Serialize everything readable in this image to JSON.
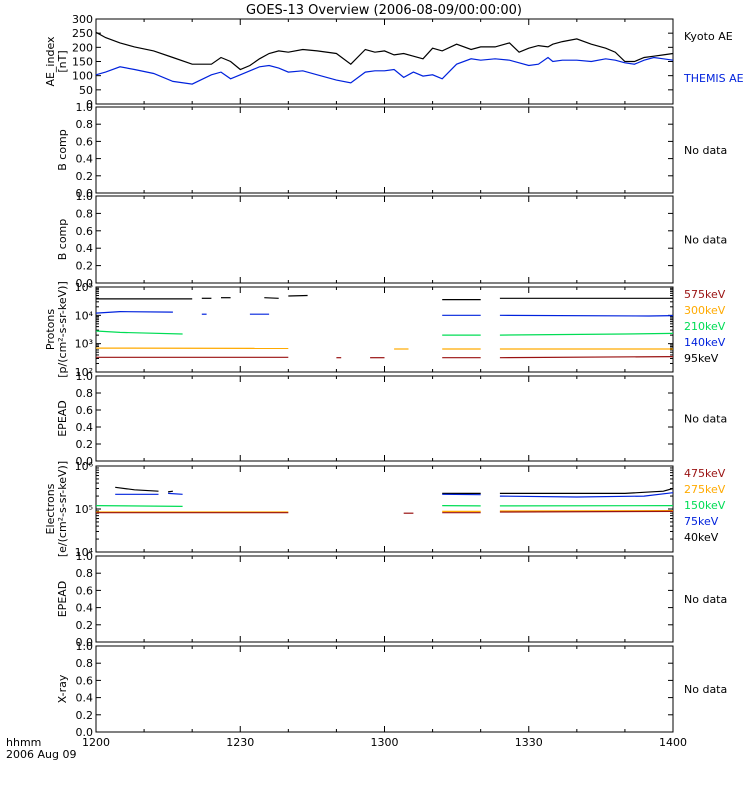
{
  "title": "GOES-13 Overview (2006-08-09/00:00:00)",
  "time_axis": {
    "label_line1": "hhmm",
    "label_line2": "2006 Aug 09",
    "ticks": [
      "1200",
      "1230",
      "1300",
      "1330",
      "1400"
    ],
    "range_minutes": [
      0,
      120
    ]
  },
  "no_data_label": "No data",
  "colors": {
    "black": "#000000",
    "blue": "#0022dd",
    "green": "#00dd55",
    "orange": "#ffaa00",
    "darkred": "#991111"
  },
  "chart_data": [
    {
      "type": "line",
      "panel": "ae-index",
      "ylabel": [
        "AE_index",
        "[nT]"
      ],
      "ylim": [
        0,
        320
      ],
      "yticks": [
        "0",
        "50",
        "100",
        "150",
        "200",
        "250",
        "300"
      ],
      "yscale": "linear",
      "legend": [
        {
          "name": "Kyoto AE",
          "color": "#000000"
        },
        {
          "name": "THEMIS AE",
          "color": "#0022dd"
        }
      ],
      "series": [
        {
          "name": "Kyoto AE",
          "color": "#000000",
          "x": [
            0,
            2,
            5,
            8,
            12,
            16,
            20,
            24,
            26,
            28,
            30,
            32,
            34,
            36,
            38,
            40,
            43,
            46,
            50,
            53,
            56,
            58,
            60,
            62,
            64,
            66,
            68,
            70,
            72,
            75,
            78,
            80,
            83,
            86,
            88,
            90,
            92,
            94,
            95,
            97,
            100,
            103,
            106,
            108,
            110,
            112,
            114,
            116,
            118,
            120
          ],
          "y": [
            270,
            250,
            230,
            215,
            200,
            175,
            150,
            150,
            175,
            160,
            130,
            145,
            170,
            190,
            200,
            195,
            205,
            200,
            190,
            150,
            205,
            195,
            200,
            185,
            190,
            180,
            170,
            210,
            200,
            225,
            205,
            215,
            215,
            230,
            195,
            210,
            220,
            215,
            225,
            235,
            245,
            225,
            210,
            195,
            160,
            160,
            175,
            180,
            185,
            190
          ]
        },
        {
          "name": "THEMIS AE",
          "color": "#0022dd",
          "x": [
            0,
            2,
            5,
            8,
            12,
            16,
            20,
            24,
            26,
            28,
            30,
            32,
            34,
            36,
            38,
            40,
            43,
            46,
            50,
            53,
            56,
            58,
            60,
            62,
            64,
            66,
            68,
            70,
            72,
            75,
            78,
            80,
            83,
            86,
            88,
            90,
            92,
            94,
            95,
            97,
            100,
            103,
            106,
            108,
            110,
            112,
            114,
            116,
            118,
            120
          ],
          "y": [
            110,
            120,
            140,
            130,
            115,
            85,
            75,
            110,
            120,
            95,
            110,
            125,
            140,
            145,
            135,
            120,
            125,
            110,
            90,
            80,
            120,
            125,
            125,
            130,
            100,
            120,
            105,
            110,
            95,
            150,
            170,
            165,
            170,
            165,
            155,
            145,
            150,
            175,
            160,
            165,
            165,
            160,
            170,
            165,
            155,
            150,
            165,
            175,
            170,
            165
          ]
        }
      ]
    },
    {
      "type": "line",
      "panel": "b-comp-1",
      "ylabel": [
        "B comp"
      ],
      "ylim": [
        0,
        1.0
      ],
      "yticks": [
        "0.0",
        "0.2",
        "0.4",
        "0.6",
        "0.8",
        "1.0"
      ],
      "series": [],
      "note": "No data"
    },
    {
      "type": "line",
      "panel": "b-comp-2",
      "ylabel": [
        "B comp"
      ],
      "ylim": [
        0,
        1.0
      ],
      "yticks": [
        "0.0",
        "0.2",
        "0.4",
        "0.6",
        "0.8",
        "1.0"
      ],
      "series": [],
      "note": "No data"
    },
    {
      "type": "line",
      "panel": "protons",
      "ylabel": [
        "Protons",
        "[p/(cm²-s-sr-keV)]"
      ],
      "ylim": [
        100,
        100000
      ],
      "yscale": "log",
      "yticks": [
        "10²",
        "10³",
        "10⁴",
        "10⁵"
      ],
      "legend": [
        {
          "name": "575keV",
          "color": "#991111"
        },
        {
          "name": "300keV",
          "color": "#ffaa00"
        },
        {
          "name": "210keV",
          "color": "#00dd55"
        },
        {
          "name": "140keV",
          "color": "#0022dd"
        },
        {
          "name": "95keV",
          "color": "#000000"
        }
      ],
      "series": [
        {
          "name": "95keV",
          "color": "#000000",
          "segments": [
            [
              [
                0,
                38000
              ],
              [
                20,
                38000
              ]
            ],
            [
              [
                22,
                40000
              ],
              [
                24,
                40000
              ]
            ],
            [
              [
                26,
                42000
              ],
              [
                28,
                42000
              ]
            ],
            [
              [
                35,
                42000
              ],
              [
                38,
                40000
              ]
            ],
            [
              [
                40,
                48000
              ],
              [
                44,
                50000
              ]
            ],
            [
              [
                72,
                36000
              ],
              [
                80,
                36000
              ]
            ],
            [
              [
                84,
                40000
              ],
              [
                120,
                40000
              ]
            ]
          ]
        },
        {
          "name": "140keV",
          "color": "#0022dd",
          "segments": [
            [
              [
                0,
                12000
              ],
              [
                5,
                13500
              ],
              [
                16,
                13000
              ]
            ],
            [
              [
                22,
                11000
              ],
              [
                23,
                11000
              ]
            ],
            [
              [
                32,
                11000
              ],
              [
                36,
                11000
              ]
            ],
            [
              [
                72,
                10000
              ],
              [
                80,
                10000
              ]
            ],
            [
              [
                84,
                10000
              ],
              [
                115,
                9500
              ],
              [
                120,
                9800
              ]
            ]
          ]
        },
        {
          "name": "210keV",
          "color": "#00dd55",
          "segments": [
            [
              [
                0,
                2800
              ],
              [
                5,
                2500
              ],
              [
                18,
                2200
              ]
            ],
            [
              [
                72,
                2000
              ],
              [
                80,
                2000
              ]
            ],
            [
              [
                84,
                2000
              ],
              [
                110,
                2200
              ],
              [
                120,
                2300
              ]
            ]
          ]
        },
        {
          "name": "300keV",
          "color": "#ffaa00",
          "segments": [
            [
              [
                0,
                700
              ],
              [
                40,
                680
              ]
            ],
            [
              [
                62,
                650
              ],
              [
                65,
                650
              ]
            ],
            [
              [
                72,
                650
              ],
              [
                80,
                650
              ]
            ],
            [
              [
                84,
                650
              ],
              [
                120,
                650
              ]
            ]
          ]
        },
        {
          "name": "575keV",
          "color": "#991111",
          "segments": [
            [
              [
                0,
                330
              ],
              [
                40,
                330
              ]
            ],
            [
              [
                50,
                320
              ],
              [
                51,
                320
              ]
            ],
            [
              [
                57,
                320
              ],
              [
                60,
                320
              ]
            ],
            [
              [
                72,
                320
              ],
              [
                80,
                320
              ]
            ],
            [
              [
                84,
                320
              ],
              [
                120,
                350
              ]
            ]
          ]
        }
      ]
    },
    {
      "type": "line",
      "panel": "epead-1",
      "ylabel": [
        "EPEAD"
      ],
      "ylim": [
        0,
        1.0
      ],
      "yticks": [
        "0.0",
        "0.2",
        "0.4",
        "0.6",
        "0.8",
        "1.0"
      ],
      "series": [],
      "note": "No data"
    },
    {
      "type": "line",
      "panel": "electrons",
      "ylabel": [
        "Electrons",
        "[e/(cm²-s-sr-keV)]"
      ],
      "ylim": [
        10000,
        1000000
      ],
      "yscale": "log",
      "yticks": [
        "10⁴",
        "10⁵",
        "10⁶"
      ],
      "legend": [
        {
          "name": "475keV",
          "color": "#991111"
        },
        {
          "name": "275keV",
          "color": "#ffaa00"
        },
        {
          "name": "150keV",
          "color": "#00dd55"
        },
        {
          "name": "75keV",
          "color": "#0022dd"
        },
        {
          "name": "40keV",
          "color": "#000000"
        }
      ],
      "series": [
        {
          "name": "40keV",
          "color": "#000000",
          "segments": [
            [
              [
                4,
                320000
              ],
              [
                8,
                280000
              ],
              [
                13,
                260000
              ]
            ],
            [
              [
                15,
                250000
              ],
              [
                16,
                260000
              ]
            ],
            [
              [
                72,
                230000
              ],
              [
                80,
                230000
              ]
            ],
            [
              [
                84,
                230000
              ],
              [
                110,
                230000
              ],
              [
                118,
                260000
              ],
              [
                120,
                300000
              ]
            ]
          ]
        },
        {
          "name": "75keV",
          "color": "#0022dd",
          "segments": [
            [
              [
                4,
                220000
              ],
              [
                13,
                220000
              ]
            ],
            [
              [
                15,
                230000
              ],
              [
                18,
                220000
              ]
            ],
            [
              [
                72,
                220000
              ],
              [
                80,
                215000
              ]
            ],
            [
              [
                84,
                200000
              ],
              [
                100,
                190000
              ],
              [
                114,
                200000
              ],
              [
                120,
                240000
              ]
            ]
          ]
        },
        {
          "name": "150keV",
          "color": "#00dd55",
          "segments": [
            [
              [
                0,
                120000
              ],
              [
                18,
                115000
              ]
            ],
            [
              [
                72,
                120000
              ],
              [
                80,
                118000
              ]
            ],
            [
              [
                84,
                118000
              ],
              [
                120,
                120000
              ]
            ]
          ]
        },
        {
          "name": "275keV",
          "color": "#ffaa00",
          "segments": [
            [
              [
                0,
                85000
              ],
              [
                40,
                85000
              ]
            ],
            [
              [
                72,
                88000
              ],
              [
                80,
                88000
              ]
            ],
            [
              [
                84,
                90000
              ],
              [
                120,
                92000
              ]
            ]
          ]
        },
        {
          "name": "475keV",
          "color": "#991111",
          "segments": [
            [
              [
                0,
                82000
              ],
              [
                40,
                82000
              ]
            ],
            [
              [
                64,
                80000
              ],
              [
                66,
                80000
              ]
            ],
            [
              [
                72,
                82000
              ],
              [
                80,
                82000
              ]
            ],
            [
              [
                84,
                85000
              ],
              [
                120,
                88000
              ]
            ]
          ]
        }
      ]
    },
    {
      "type": "line",
      "panel": "epead-2",
      "ylabel": [
        "EPEAD"
      ],
      "ylim": [
        0,
        1.0
      ],
      "yticks": [
        "0.0",
        "0.2",
        "0.4",
        "0.6",
        "0.8",
        "1.0"
      ],
      "series": [],
      "note": "No data"
    },
    {
      "type": "line",
      "panel": "x-ray",
      "ylabel": [
        "X-ray"
      ],
      "ylim": [
        0,
        1.0
      ],
      "yticks": [
        "0.0",
        "0.2",
        "0.4",
        "0.6",
        "0.8",
        "1.0"
      ],
      "series": [],
      "note": "No data"
    }
  ]
}
